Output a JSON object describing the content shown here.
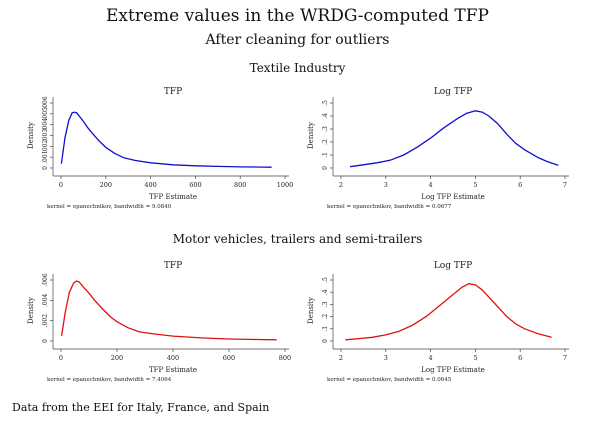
{
  "title": "Extreme values in the WRDG-computed TFP",
  "subtitle": "After cleaning for outliers",
  "footnote": "Data from the EEI for Italy, France, and Spain",
  "colors": {
    "textile": "#1010d0",
    "motor": "#e01010"
  },
  "sections": [
    "Textile Industry",
    "Motor vehicles, trailers and semi-trailers"
  ],
  "chart_data": [
    {
      "type": "line",
      "section": "Textile Industry",
      "title": "TFP",
      "xlabel": "TFP Estimate",
      "ylabel": "Density",
      "note": "kernel = epanechnikov, bandwidth = 9.0840",
      "xlim": [
        0,
        1000
      ],
      "xticks": [
        0,
        200,
        400,
        600,
        800,
        1000
      ],
      "ylim": [
        0,
        0.006
      ],
      "yticks": [
        0,
        0.001,
        0.002,
        0.003,
        0.004,
        0.005,
        0.006
      ],
      "ytick_labels": [
        "0",
        ".001",
        ".002",
        ".003",
        ".004",
        ".005",
        ".006"
      ],
      "color": "#1010d0",
      "x": [
        2,
        18,
        35,
        50,
        60,
        70,
        85,
        100,
        120,
        140,
        170,
        200,
        240,
        280,
        330,
        400,
        500,
        600,
        700,
        800,
        900,
        940
      ],
      "y": [
        0.0004,
        0.0028,
        0.0044,
        0.0051,
        0.00515,
        0.0051,
        0.0047,
        0.0043,
        0.0037,
        0.0032,
        0.0025,
        0.0019,
        0.00135,
        0.00095,
        0.0007,
        0.00048,
        0.0003,
        0.0002,
        0.00015,
        0.0001,
        8e-05,
        7e-05
      ]
    },
    {
      "type": "line",
      "section": "Textile Industry",
      "title": "Log TFP",
      "xlabel": "Log TFP Estimate",
      "ylabel": "Density",
      "note": "kernel = epanechnikov, bandwidth = 0.0677",
      "xlim": [
        2,
        7
      ],
      "xticks": [
        2,
        3,
        4,
        5,
        6,
        7
      ],
      "ylim": [
        0,
        0.5
      ],
      "yticks": [
        0,
        0.1,
        0.2,
        0.3,
        0.4,
        0.5
      ],
      "ytick_labels": [
        "0",
        ".1",
        ".2",
        ".3",
        ".4",
        ".5"
      ],
      "color": "#1010d0",
      "x": [
        2.2,
        2.5,
        2.8,
        3.1,
        3.4,
        3.7,
        4.0,
        4.3,
        4.6,
        4.8,
        5.0,
        5.15,
        5.3,
        5.5,
        5.7,
        5.9,
        6.1,
        6.4,
        6.6,
        6.85
      ],
      "y": [
        0.01,
        0.025,
        0.04,
        0.06,
        0.1,
        0.16,
        0.23,
        0.31,
        0.38,
        0.42,
        0.44,
        0.43,
        0.4,
        0.34,
        0.26,
        0.19,
        0.14,
        0.08,
        0.05,
        0.02
      ]
    },
    {
      "type": "line",
      "section": "Motor vehicles, trailers and semi-trailers",
      "title": "TFP",
      "xlabel": "TFP Estimate",
      "ylabel": "Density",
      "note": "kernel = epanechnikov, bandwidth = 7.4064",
      "xlim": [
        0,
        800
      ],
      "xticks": [
        0,
        200,
        400,
        600,
        800
      ],
      "ylim": [
        0,
        0.006
      ],
      "yticks": [
        0,
        0.002,
        0.004,
        0.006
      ],
      "ytick_labels": [
        "0",
        ".002",
        ".004",
        ".006"
      ],
      "color": "#e01010",
      "x": [
        2,
        15,
        30,
        45,
        55,
        65,
        80,
        100,
        120,
        150,
        180,
        200,
        240,
        280,
        330,
        400,
        500,
        600,
        700,
        770
      ],
      "y": [
        0.0005,
        0.0028,
        0.0048,
        0.0057,
        0.0059,
        0.0058,
        0.0053,
        0.0047,
        0.004,
        0.0031,
        0.0023,
        0.0019,
        0.0013,
        0.0009,
        0.0007,
        0.00048,
        0.0003,
        0.0002,
        0.00015,
        0.00012
      ]
    },
    {
      "type": "line",
      "section": "Motor vehicles, trailers and semi-trailers",
      "title": "Log TFP",
      "xlabel": "Log TFP Estimate",
      "ylabel": "Density",
      "note": "kernel = epanechnikov, bandwidth = 0.0645",
      "xlim": [
        2,
        7
      ],
      "xticks": [
        2,
        3,
        4,
        5,
        6,
        7
      ],
      "ylim": [
        0,
        0.5
      ],
      "yticks": [
        0,
        0.1,
        0.2,
        0.3,
        0.4,
        0.5
      ],
      "ytick_labels": [
        "0",
        ".1",
        ".2",
        ".3",
        ".4",
        ".5"
      ],
      "color": "#e01010",
      "x": [
        2.1,
        2.4,
        2.7,
        3.0,
        3.3,
        3.6,
        3.9,
        4.2,
        4.5,
        4.7,
        4.85,
        5.0,
        5.15,
        5.3,
        5.5,
        5.7,
        5.9,
        6.1,
        6.4,
        6.7
      ],
      "y": [
        0.01,
        0.02,
        0.03,
        0.05,
        0.08,
        0.13,
        0.2,
        0.29,
        0.38,
        0.44,
        0.47,
        0.46,
        0.42,
        0.36,
        0.28,
        0.2,
        0.14,
        0.1,
        0.06,
        0.03
      ]
    }
  ]
}
